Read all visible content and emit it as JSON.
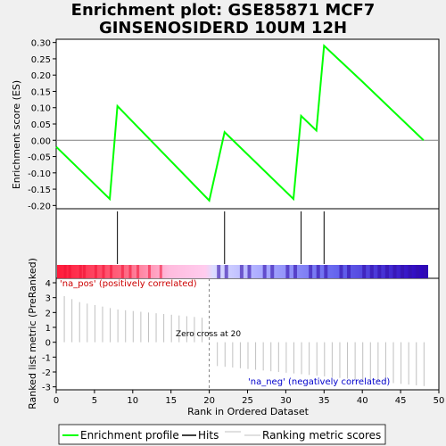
{
  "title_line1": "Enrichment plot: GSE85871 MCF7",
  "title_line2": "GINSENOSIDERD 10UM 12H",
  "chart_data": {
    "type": "line",
    "xlabel": "Rank in Ordered Dataset",
    "ylabel_top": "Enrichment score (ES)",
    "ylabel_bottom": "Ranked list metric (PreRanked)",
    "x_ticks": [
      0,
      5,
      10,
      15,
      20,
      25,
      30,
      35,
      40,
      45,
      50
    ],
    "es_ticks": [
      0.3,
      0.25,
      0.2,
      0.15,
      0.1,
      0.05,
      0.0,
      -0.05,
      -0.1,
      -0.15,
      -0.2
    ],
    "es_tick_labels": [
      "0.30",
      "0.25",
      "0.20",
      "0.15",
      "0.10",
      "0.05",
      "0.00",
      "-0.05",
      "-0.10",
      "-0.15",
      "-0.20"
    ],
    "metric_ticks": [
      4,
      3,
      2,
      1,
      0,
      -1,
      -2,
      -3
    ],
    "xlim": [
      0,
      50
    ],
    "es_ylim": [
      -0.21,
      0.31
    ],
    "metric_ylim": [
      -3.2,
      4.3
    ],
    "es_curve": {
      "name": "Enrichment profile",
      "x": [
        0,
        7,
        8,
        20,
        22,
        31,
        32,
        34,
        35,
        40,
        48
      ],
      "y": [
        -0.02,
        -0.18,
        0.105,
        -0.185,
        0.025,
        -0.18,
        0.075,
        0.03,
        0.29,
        0.18,
        0.0
      ]
    },
    "hits": [
      8,
      22,
      32,
      35
    ],
    "metric_bars": {
      "x": [
        1,
        2,
        3,
        4,
        5,
        6,
        7,
        8,
        9,
        10,
        11,
        12,
        13,
        14,
        15,
        16,
        17,
        18,
        19,
        21,
        22,
        23,
        24,
        25,
        26,
        27,
        28,
        29,
        30,
        31,
        32,
        33,
        34,
        35,
        36,
        37,
        38,
        39,
        40,
        41,
        42,
        43,
        44,
        45,
        46,
        47,
        48
      ],
      "y": [
        3.1,
        2.9,
        2.7,
        2.6,
        2.5,
        2.4,
        2.3,
        2.2,
        2.15,
        2.1,
        2.05,
        2.0,
        1.95,
        1.9,
        1.85,
        1.8,
        1.75,
        1.7,
        1.65,
        -1.6,
        -1.65,
        -1.7,
        -1.75,
        -1.8,
        -1.85,
        -1.9,
        -1.95,
        -2.0,
        -2.05,
        -2.1,
        -2.15,
        -2.2,
        -2.25,
        -2.3,
        -2.35,
        -2.4,
        -2.45,
        -2.5,
        -2.55,
        -2.6,
        -2.65,
        -2.7,
        -2.75,
        -2.8,
        -2.85,
        -2.9,
        -2.95
      ]
    },
    "zero_cross": 20,
    "zero_cross_label": "Zero cross at 20",
    "pos_label": "'na_pos' (positively correlated)",
    "neg_label": "'na_neg' (negatively correlated)",
    "legend": [
      "Enrichment profile",
      "Hits",
      "Ranking metric scores"
    ],
    "colors": {
      "curve": "#00ff00",
      "hits": "#000000",
      "metric": "#c0c0c0",
      "pos_label": "#cc0000",
      "neg_label": "#0000cc"
    }
  }
}
